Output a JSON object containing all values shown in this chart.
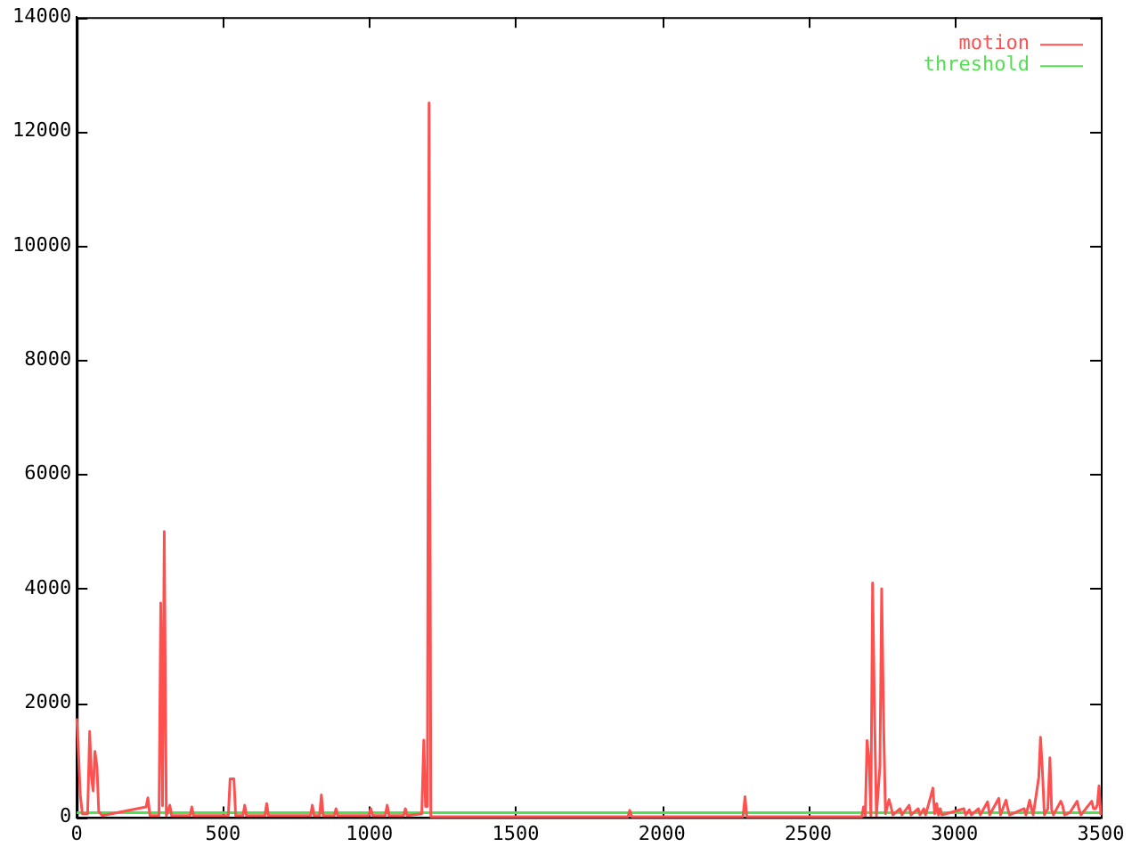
{
  "chart_data": {
    "type": "line",
    "xlim": [
      0,
      3500
    ],
    "xticks": [
      0,
      500,
      1000,
      1500,
      2000,
      2500,
      3000,
      3500
    ],
    "ylim": [
      0,
      14000
    ],
    "yticks": [
      0,
      2000,
      4000,
      6000,
      8000,
      10000,
      12000,
      14000
    ],
    "grid": false,
    "legend": "top right",
    "marker": "none",
    "series": [
      {
        "name": "motion",
        "color": "#ff5050",
        "x": [
          0,
          6,
          12,
          19,
          37,
          44,
          50,
          56,
          62,
          69,
          75,
          87,
          237,
          243,
          250,
          281,
          287,
          293,
          299,
          306,
          318,
          324,
          387,
          393,
          399,
          518,
          524,
          537,
          543,
          568,
          574,
          580,
          643,
          649,
          655,
          799,
          805,
          811,
          830,
          836,
          842,
          880,
          886,
          892,
          998,
          1005,
          1011,
          1054,
          1061,
          1067,
          1117,
          1123,
          1129,
          1179,
          1186,
          1192,
          1198,
          1204,
          1210,
          1884,
          1890,
          1897,
          2277,
          2284,
          2290,
          2683,
          2689,
          2695,
          2701,
          2708,
          2714,
          2720,
          2727,
          2733,
          2745,
          2751,
          2758,
          2764,
          2776,
          2783,
          2789,
          2814,
          2820,
          2845,
          2851,
          2876,
          2882,
          2895,
          2901,
          2920,
          2926,
          2932,
          2939,
          2945,
          2951,
          2957,
          3032,
          3038,
          3051,
          3057,
          3082,
          3088,
          3113,
          3120,
          3151,
          3157,
          3176,
          3182,
          3188,
          3238,
          3244,
          3257,
          3263,
          3269,
          3288,
          3294,
          3301,
          3307,
          3319,
          3326,
          3332,
          3338,
          3363,
          3369,
          3376,
          3394,
          3419,
          3425,
          3432,
          3469,
          3475,
          3482,
          3488,
          3494,
          3500
        ],
        "values": [
          1730,
          1090,
          390,
          60,
          60,
          1500,
          700,
          460,
          1150,
          890,
          100,
          30,
          180,
          340,
          30,
          30,
          3750,
          200,
          5000,
          30,
          210,
          30,
          30,
          180,
          30,
          30,
          670,
          670,
          30,
          30,
          210,
          30,
          30,
          240,
          30,
          30,
          210,
          30,
          30,
          390,
          30,
          30,
          150,
          30,
          30,
          150,
          30,
          30,
          210,
          30,
          30,
          150,
          30,
          60,
          1350,
          190,
          190,
          12500,
          10,
          10,
          120,
          10,
          10,
          360,
          10,
          10,
          180,
          30,
          1340,
          1000,
          30,
          4100,
          1700,
          30,
          890,
          4000,
          1550,
          60,
          310,
          180,
          40,
          150,
          40,
          210,
          40,
          150,
          40,
          150,
          40,
          390,
          510,
          60,
          240,
          40,
          150,
          40,
          150,
          40,
          130,
          40,
          150,
          40,
          270,
          40,
          330,
          40,
          300,
          150,
          40,
          150,
          40,
          300,
          150,
          40,
          700,
          1400,
          750,
          40,
          150,
          1040,
          130,
          40,
          280,
          210,
          40,
          80,
          280,
          150,
          40,
          280,
          150,
          150,
          210,
          550,
          40
        ]
      },
      {
        "name": "threshold",
        "color": "#50e050",
        "x": [
          0,
          3500
        ],
        "values": [
          80,
          80
        ]
      }
    ]
  }
}
